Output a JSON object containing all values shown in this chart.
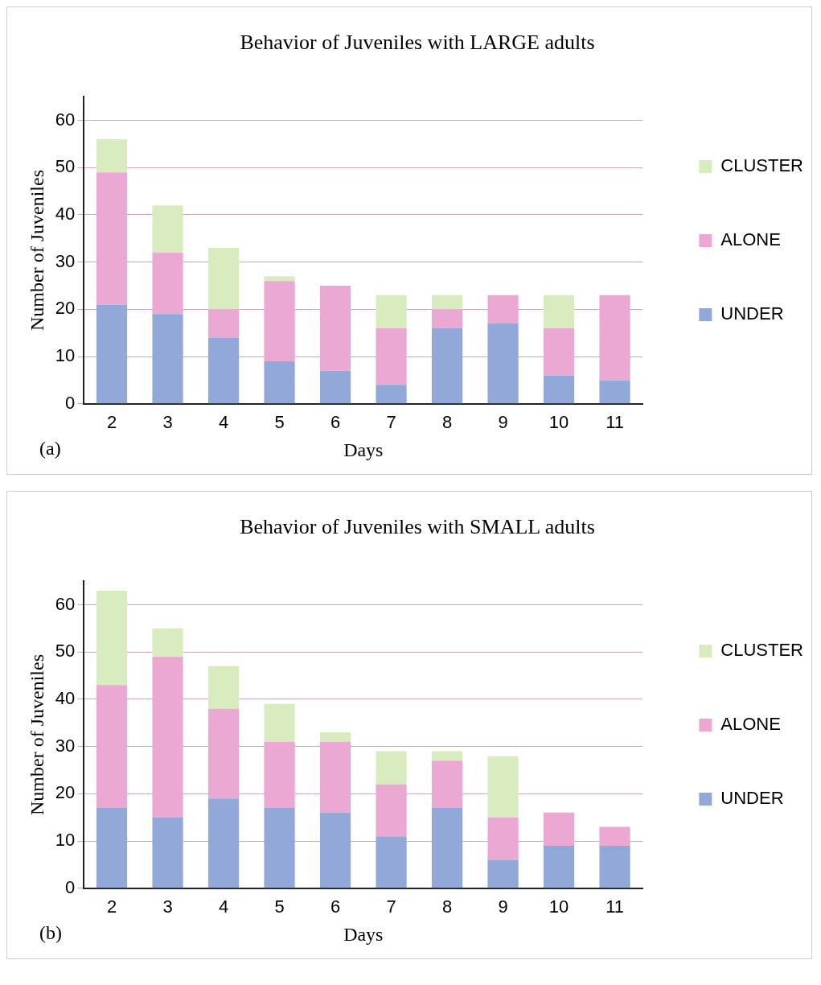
{
  "chart_data": [
    {
      "type": "bar",
      "title": "Behavior of Juveniles with LARGE adults",
      "xlabel": "Days",
      "ylabel": "Number of Juveniles",
      "categories": [
        "2",
        "3",
        "4",
        "5",
        "6",
        "7",
        "8",
        "9",
        "10",
        "11"
      ],
      "stacked": true,
      "ylim": [
        0,
        65
      ],
      "yticks": [
        0,
        10,
        20,
        30,
        40,
        50,
        60
      ],
      "grid": "y",
      "legend": "right",
      "annotations": [
        "(a)"
      ],
      "series": [
        {
          "name": "UNDER",
          "color": "#92a8d8",
          "values": [
            21,
            19,
            14,
            9,
            7,
            4,
            16,
            17,
            6,
            5
          ]
        },
        {
          "name": "ALONE",
          "color": "#eaa8d2",
          "values": [
            28,
            13,
            6,
            17,
            18,
            12,
            4,
            6,
            10,
            18
          ]
        },
        {
          "name": "CLUSTER",
          "color": "#d8ecc0",
          "values": [
            7,
            10,
            13,
            1,
            0,
            7,
            3,
            0,
            7,
            0
          ]
        }
      ]
    },
    {
      "type": "bar",
      "title": "Behavior of Juveniles with SMALL adults",
      "xlabel": "Days",
      "ylabel": "Number of Juveniles",
      "categories": [
        "2",
        "3",
        "4",
        "5",
        "6",
        "7",
        "8",
        "9",
        "10",
        "11"
      ],
      "stacked": true,
      "ylim": [
        0,
        65
      ],
      "yticks": [
        0,
        10,
        20,
        30,
        40,
        50,
        60
      ],
      "grid": "y",
      "legend": "right",
      "annotations": [
        "(b)"
      ],
      "series": [
        {
          "name": "UNDER",
          "color": "#92a8d8",
          "values": [
            17,
            15,
            19,
            17,
            16,
            11,
            17,
            6,
            9,
            9
          ]
        },
        {
          "name": "ALONE",
          "color": "#eaa8d2",
          "values": [
            26,
            34,
            19,
            14,
            15,
            11,
            10,
            9,
            7,
            4
          ]
        },
        {
          "name": "CLUSTER",
          "color": "#d8ecc0",
          "values": [
            20,
            6,
            9,
            8,
            2,
            7,
            2,
            13,
            0,
            0
          ]
        }
      ]
    }
  ]
}
